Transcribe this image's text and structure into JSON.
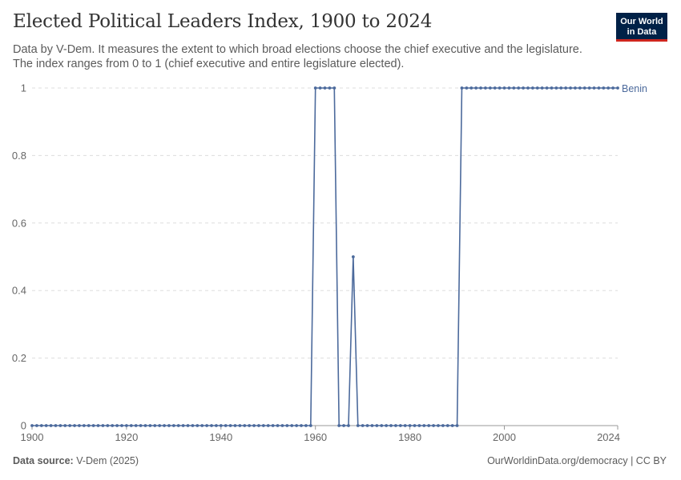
{
  "header": {
    "title": "Elected Political Leaders Index, 1900 to 2024",
    "subtitle_line1": "Data by V-Dem. It measures the extent to which broad elections choose the chief executive and the legislature.",
    "subtitle_line2": "The index ranges from 0 to 1 (chief executive and entire legislature elected)."
  },
  "logo": {
    "line1": "Our World",
    "line2": "in Data"
  },
  "footer": {
    "source_label": "Data source:",
    "source_value": "V-Dem (2025)",
    "url": "OurWorldinData.org/democracy | CC BY"
  },
  "colors": {
    "series": "#4c6a9c",
    "grid": "#dddddd",
    "axis": "#999999"
  },
  "chart_data": {
    "type": "line",
    "title": "Elected Political Leaders Index, 1900 to 2024",
    "xlim": [
      1900,
      2024
    ],
    "ylim": [
      0,
      1
    ],
    "x_ticks": [
      1900,
      1920,
      1940,
      1960,
      1980,
      2000,
      2024
    ],
    "y_ticks": [
      0,
      0.2,
      0.4,
      0.6,
      0.8,
      1
    ],
    "y_tick_labels": [
      "0",
      "0.2",
      "0.4",
      "0.6",
      "0.8",
      "1"
    ],
    "grid": "horizontal dashed",
    "series": [
      {
        "name": "Benin",
        "segments": [
          {
            "x_start": 1900,
            "x_end": 1959,
            "y": 0
          },
          {
            "x_start": 1960,
            "x_end": 1964,
            "y": 1
          },
          {
            "x_start": 1965,
            "x_end": 1967,
            "y": 0
          },
          {
            "x_start": 1968,
            "x_end": 1968,
            "y": 0.5
          },
          {
            "x_start": 1969,
            "x_end": 1990,
            "y": 0
          },
          {
            "x_start": 1991,
            "x_end": 2024,
            "y": 1
          }
        ]
      }
    ]
  }
}
